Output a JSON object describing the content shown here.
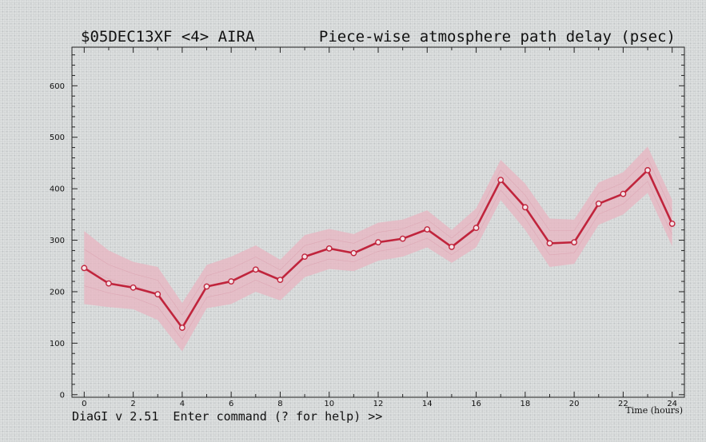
{
  "chart_data": {
    "type": "line",
    "title_left": "$05DEC13XF <4>  AIRA",
    "title_right": "Piece-wise atmosphere path delay (psec)",
    "xlabel": "Time (hours)",
    "ylabel": "",
    "xlim": [
      -0.5,
      24.5
    ],
    "ylim": [
      -5,
      675
    ],
    "xticks": [
      0,
      2,
      4,
      6,
      8,
      10,
      12,
      14,
      16,
      18,
      20,
      22,
      24
    ],
    "yticks": [
      0,
      100,
      200,
      300,
      400,
      500,
      600
    ],
    "grid": false,
    "series": [
      {
        "x": [
          0,
          1,
          2,
          3,
          4,
          5,
          6,
          7,
          8,
          9,
          10,
          11,
          12,
          13,
          14,
          15,
          16,
          17,
          18,
          19,
          20,
          21,
          22,
          23,
          24
        ],
        "values": [
          246,
          216,
          208,
          195,
          130,
          210,
          220,
          243,
          223,
          268,
          284,
          275,
          296,
          303,
          321,
          287,
          324,
          417,
          364,
          294,
          296,
          371,
          390,
          436,
          332
        ],
        "lower": [
          176,
          170,
          166,
          145,
          84,
          168,
          176,
          200,
          183,
          228,
          244,
          240,
          260,
          268,
          286,
          256,
          286,
          378,
          320,
          248,
          254,
          330,
          350,
          392,
          288
        ],
        "upper": [
          318,
          280,
          258,
          248,
          178,
          252,
          268,
          290,
          262,
          310,
          322,
          312,
          334,
          340,
          358,
          320,
          362,
          456,
          410,
          342,
          340,
          412,
          432,
          482,
          378
        ],
        "line_color": "#c0243c",
        "band_color": "#e8b4c0"
      }
    ]
  },
  "status": {
    "prompt": "DiaGI v 2.51  Enter command (? for help) >>"
  }
}
